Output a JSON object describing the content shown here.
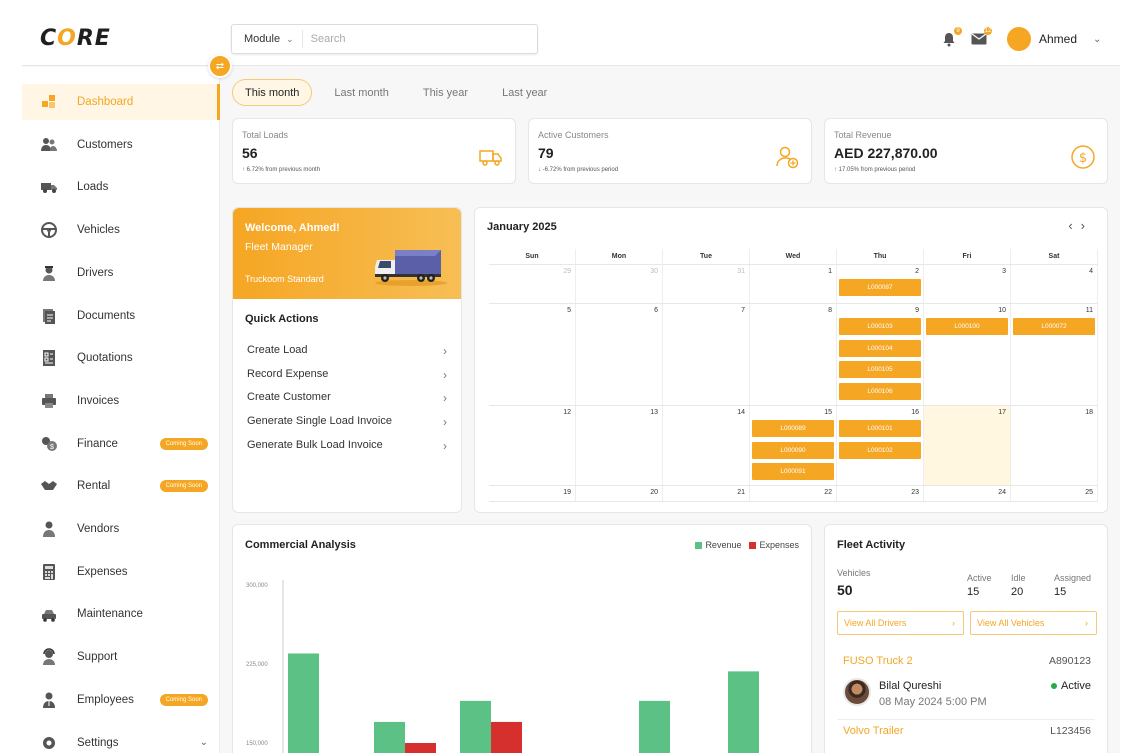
{
  "app": {
    "logo": "CORE"
  },
  "search": {
    "module_label": "Module",
    "placeholder": "Search"
  },
  "header": {
    "notifications_count": "9",
    "messages_count": "12",
    "user_name": "Ahmed"
  },
  "sidebar": {
    "items": [
      {
        "label": "Dashboard",
        "icon": "dashboard-icon",
        "active": true
      },
      {
        "label": "Customers",
        "icon": "customers-icon"
      },
      {
        "label": "Loads",
        "icon": "truck-icon"
      },
      {
        "label": "Vehicles",
        "icon": "steering-wheel-icon"
      },
      {
        "label": "Drivers",
        "icon": "driver-icon"
      },
      {
        "label": "Documents",
        "icon": "documents-icon"
      },
      {
        "label": "Quotations",
        "icon": "quotation-icon"
      },
      {
        "label": "Invoices",
        "icon": "printer-icon"
      },
      {
        "label": "Finance",
        "icon": "coins-icon",
        "badge": "Coming Soon"
      },
      {
        "label": "Rental",
        "icon": "handshake-icon",
        "badge": "Coming Soon"
      },
      {
        "label": "Vendors",
        "icon": "vendor-icon"
      },
      {
        "label": "Expenses",
        "icon": "calculator-icon"
      },
      {
        "label": "Maintenance",
        "icon": "maintenance-icon"
      },
      {
        "label": "Support",
        "icon": "support-icon"
      },
      {
        "label": "Employees",
        "icon": "employee-icon",
        "badge": "Coming Soon"
      },
      {
        "label": "Settings",
        "icon": "gear-icon"
      }
    ]
  },
  "tabs": [
    "This month",
    "Last month",
    "This year",
    "Last year"
  ],
  "kpis": [
    {
      "label": "Total Loads",
      "value": "56",
      "delta": "6.72%",
      "delta_text": " from previous month",
      "dir": "up"
    },
    {
      "label": "Active Customers",
      "value": "79",
      "delta": "-6.72%",
      "delta_text": " from previous period",
      "dir": "down"
    },
    {
      "label": "Total Revenue",
      "value": "AED 227,870.00",
      "delta": "17.05%",
      "delta_text": " from previous period",
      "dir": "up"
    }
  ],
  "welcome": {
    "greeting": "Welcome, Ahmed!",
    "role": "Fleet Manager",
    "plan": "Truckoom Standard"
  },
  "quick_actions": {
    "title": "Quick Actions",
    "items": [
      "Create Load",
      "Record Expense",
      "Create Customer",
      "Generate Single Load Invoice",
      "Generate Bulk Load Invoice"
    ]
  },
  "calendar": {
    "title": "January 2025",
    "weekdays": [
      "Sun",
      "Mon",
      "Tue",
      "Wed",
      "Thu",
      "Fri",
      "Sat"
    ],
    "weeks": [
      [
        {
          "d": "29",
          "m": true
        },
        {
          "d": "30",
          "m": true
        },
        {
          "d": "31",
          "m": true
        },
        {
          "d": "1"
        },
        {
          "d": "2",
          "e": [
            "L000087"
          ]
        },
        {
          "d": "3"
        },
        {
          "d": "4"
        }
      ],
      [
        {
          "d": "5"
        },
        {
          "d": "6"
        },
        {
          "d": "7"
        },
        {
          "d": "8"
        },
        {
          "d": "9",
          "e": [
            "L000103",
            "L000104",
            "L000105",
            "L000106"
          ]
        },
        {
          "d": "10",
          "e": [
            "L000100"
          ]
        },
        {
          "d": "11",
          "e": [
            "L000072"
          ]
        }
      ],
      [
        {
          "d": "12"
        },
        {
          "d": "13"
        },
        {
          "d": "14"
        },
        {
          "d": "15",
          "e": [
            "L000089",
            "L000090",
            "L000091"
          ]
        },
        {
          "d": "16",
          "e": [
            "L000101",
            "L000102"
          ]
        },
        {
          "d": "17",
          "today": true
        },
        {
          "d": "18"
        }
      ],
      [
        {
          "d": "19"
        },
        {
          "d": "20"
        },
        {
          "d": "21"
        },
        {
          "d": "22"
        },
        {
          "d": "23"
        },
        {
          "d": "24"
        },
        {
          "d": "25"
        }
      ]
    ]
  },
  "commercial": {
    "title": "Commercial Analysis",
    "legend_revenue": "Revenue",
    "legend_expenses": "Expenses"
  },
  "chart_data": {
    "type": "bar",
    "title": "Commercial Analysis",
    "yticks": [
      "300,000",
      "225,000",
      "150,000"
    ],
    "ylim": [
      150000,
      300000
    ],
    "legend": "top-right",
    "colors": {
      "Revenue": "#5cc184",
      "Expenses": "#d6302e"
    },
    "series": [
      {
        "name": "Revenue",
        "values": [
          235000,
          170000,
          190000,
          null,
          190000,
          218000
        ]
      },
      {
        "name": "Expenses",
        "values": [
          null,
          150000,
          170000,
          null,
          null,
          null
        ]
      }
    ]
  },
  "fleet": {
    "title": "Fleet Activity",
    "vehicles_label": "Vehicles",
    "vehicles_value": "50",
    "active_label": "Active",
    "active_value": "15",
    "idle_label": "Idle",
    "idle_value": "20",
    "assigned_label": "Assigned",
    "assigned_value": "15",
    "view_drivers": "View All Drivers",
    "view_vehicles": "View All Vehicles",
    "vehicle1": {
      "name": "FUSO Truck 2",
      "code": "A890123",
      "driver": "Bilal Qureshi",
      "time": "08 May 2024 5:00 PM",
      "status": "Active"
    },
    "vehicle2": {
      "name": "Volvo Trailer",
      "code": "L123456"
    }
  },
  "colors": {
    "accent": "#f5a623",
    "revenue": "#5cc184",
    "expenses": "#d6302e"
  }
}
